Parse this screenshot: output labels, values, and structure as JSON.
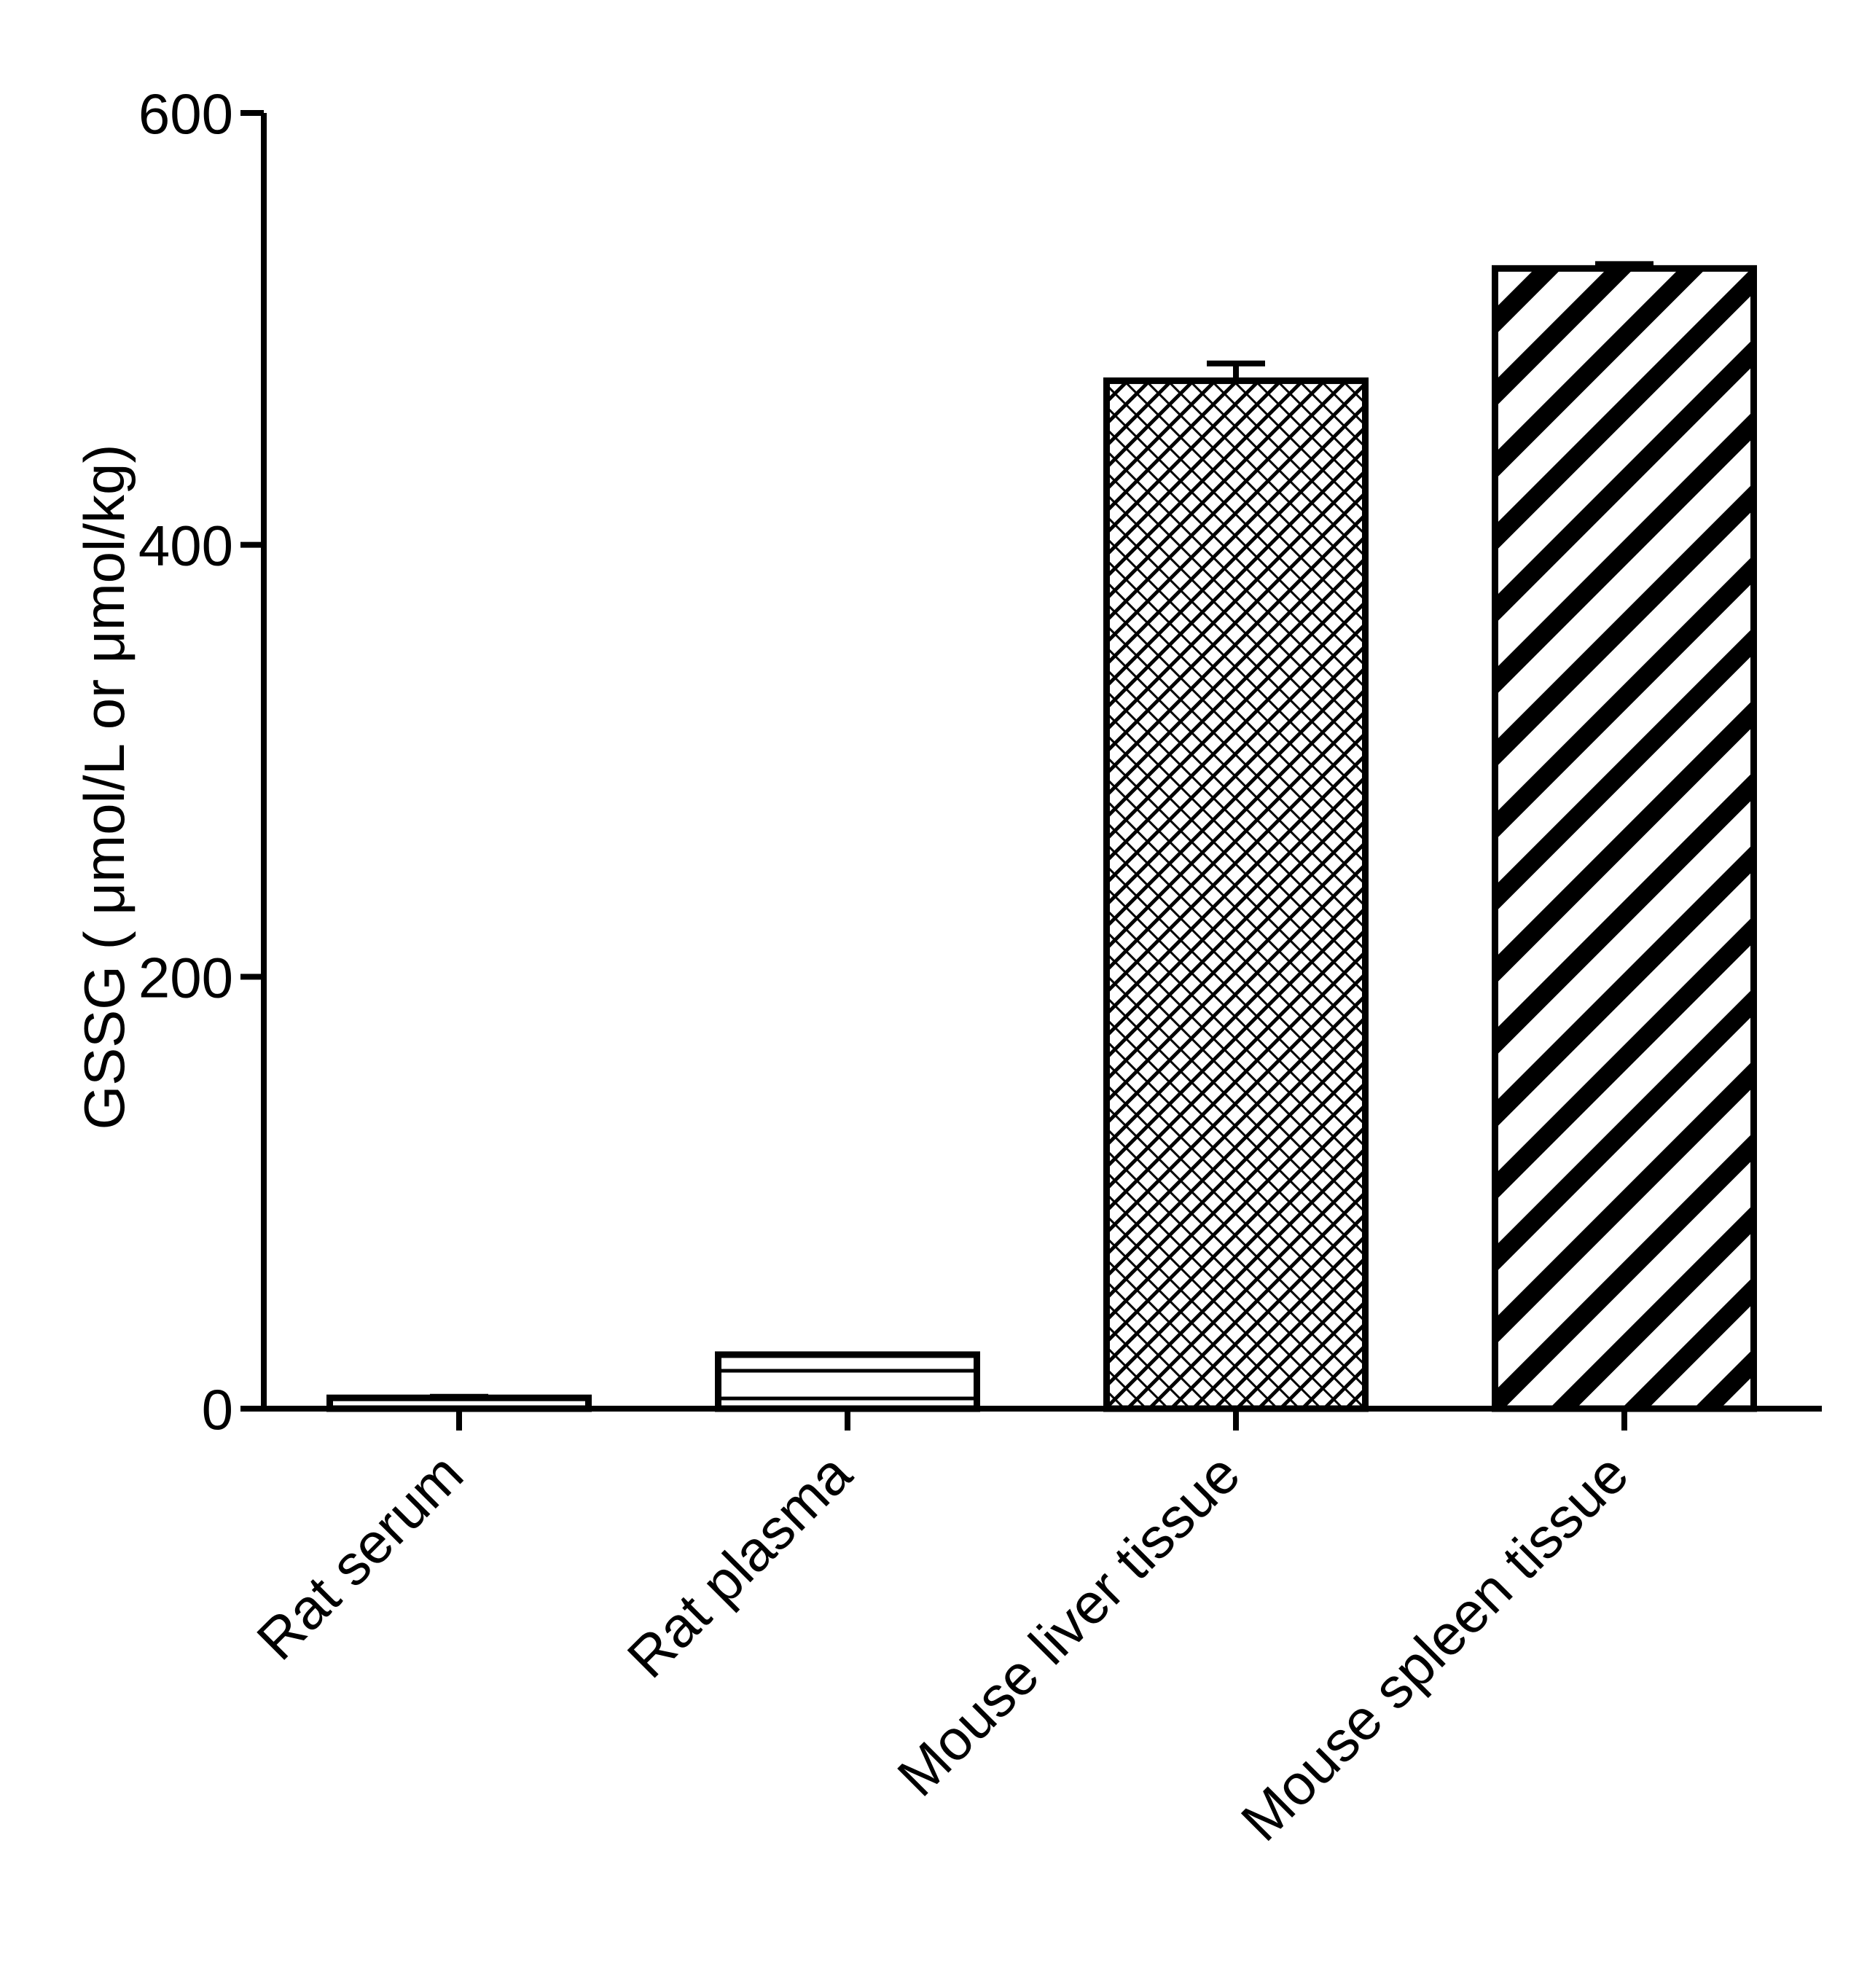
{
  "chart_data": {
    "type": "bar",
    "title": "",
    "xlabel": "",
    "ylabel": "GSSG ( μmol/L or μmol/kg)",
    "ylim": [
      0,
      600
    ],
    "yticks": [
      "0",
      "200",
      "400",
      "600"
    ],
    "grid": false,
    "categories": [
      "Rat serum",
      "Rat plasma",
      "Mouse liver tissue",
      "Mouse spleen tissue"
    ],
    "values": [
      5,
      25,
      476,
      528
    ],
    "errors": [
      0.5,
      0,
      8,
      2
    ],
    "fill_patterns": [
      "open",
      "horizontal-lines",
      "crosshatch",
      "diagonal-stripes"
    ],
    "colors": {
      "stroke": "#000000",
      "fill": "#ffffff"
    }
  }
}
